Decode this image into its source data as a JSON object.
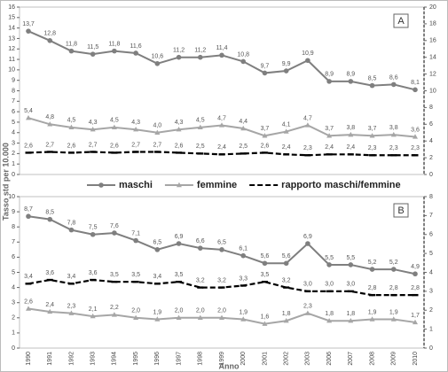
{
  "chart_data": [
    {
      "type": "line",
      "label": "A",
      "ylabel": "Tasso std per 10.000",
      "ylim": [
        0,
        16
      ],
      "yticks": [
        0,
        1,
        2,
        3,
        4,
        5,
        6,
        7,
        8,
        9,
        10,
        11,
        12,
        13,
        14,
        15,
        16
      ],
      "y2lim": [
        0,
        20
      ],
      "y2ticks": [
        0,
        2,
        4,
        6,
        8,
        10,
        12,
        14,
        16,
        18,
        20
      ],
      "series": [
        {
          "name": "maschi",
          "color": "#7f7f7f",
          "marker": "circle",
          "values": [
            13.7,
            12.8,
            11.8,
            11.5,
            11.8,
            11.6,
            10.6,
            11.2,
            11.2,
            11.4,
            10.8,
            9.7,
            9.9,
            10.9,
            8.9,
            8.9,
            8.5,
            8.6,
            8.1
          ],
          "value_labels": [
            "13,7",
            "12,8",
            "11,8",
            "11,5",
            "11,8",
            "11,6",
            "10,6",
            "11,2",
            "11,2",
            "11,4",
            "10,8",
            "9,7",
            "9,9",
            "10,9",
            "8,9",
            "8,9",
            "8,5",
            "8,6",
            "8,1"
          ]
        },
        {
          "name": "femmine",
          "color": "#a6a6a6",
          "marker": "triangle",
          "values": [
            5.4,
            4.8,
            4.5,
            4.3,
            4.5,
            4.3,
            4.0,
            4.3,
            4.5,
            4.7,
            4.4,
            3.7,
            4.1,
            4.7,
            3.7,
            3.8,
            3.7,
            3.8,
            3.6
          ],
          "value_labels": [
            "5,4",
            "4,8",
            "4,5",
            "4,3",
            "4,5",
            "4,3",
            "4,0",
            "4,3",
            "4,5",
            "4,7",
            "4,4",
            "3,7",
            "4,1",
            "4,7",
            "3,7",
            "3,8",
            "3,7",
            "3,8",
            "3,6"
          ]
        },
        {
          "name": "rapporto maschi/femmine",
          "color": "#000000",
          "marker": "dash",
          "dashed": true,
          "axis": "y2",
          "values": [
            2.6,
            2.7,
            2.6,
            2.7,
            2.6,
            2.7,
            2.7,
            2.6,
            2.5,
            2.4,
            2.5,
            2.6,
            2.4,
            2.3,
            2.4,
            2.4,
            2.3,
            2.3,
            2.3
          ],
          "value_labels": [
            "2,6",
            "2,7",
            "2,6",
            "2,7",
            "2,6",
            "2,7",
            "2,7",
            "2,6",
            "2,5",
            "2,4",
            "2,5",
            "2,6",
            "2,4",
            "2,3",
            "2,4",
            "2,4",
            "2,3",
            "2,3",
            "2,3"
          ]
        }
      ]
    },
    {
      "type": "line",
      "label": "B",
      "xlabel": "Anno",
      "categories": [
        "1990",
        "1991",
        "1992",
        "1993",
        "1994",
        "1995",
        "1996",
        "1997",
        "1998",
        "1999",
        "2000",
        "2001",
        "2002",
        "2003",
        "2006",
        "2007",
        "2008",
        "2009",
        "2010"
      ],
      "ylim": [
        0,
        10
      ],
      "yticks": [
        0,
        1,
        2,
        3,
        4,
        5,
        6,
        7,
        8,
        9,
        10
      ],
      "y2lim": [
        0,
        8
      ],
      "y2ticks": [
        0,
        1,
        2,
        3,
        4,
        5,
        6,
        7,
        8
      ],
      "series": [
        {
          "color": "#7f7f7f",
          "marker": "circle",
          "values": [
            8.7,
            8.5,
            7.8,
            7.5,
            7.6,
            7.1,
            6.5,
            6.9,
            6.6,
            6.5,
            6.1,
            5.6,
            5.6,
            6.9,
            5.5,
            5.5,
            5.2,
            5.2,
            4.9
          ],
          "value_labels": [
            "8,7",
            "8,5",
            "7,8",
            "7,5",
            "7,6",
            "7,1",
            "6,5",
            "6,9",
            "6,6",
            "6,5",
            "6,1",
            "5,6",
            "5,6",
            "6,9",
            "5,5",
            "5,5",
            "5,2",
            "5,2",
            "4,9"
          ]
        },
        {
          "color": "#a6a6a6",
          "marker": "triangle",
          "values": [
            2.6,
            2.4,
            2.3,
            2.1,
            2.2,
            2.0,
            1.9,
            2.0,
            2.0,
            2.0,
            1.9,
            1.6,
            1.8,
            2.3,
            1.8,
            1.8,
            1.9,
            1.9,
            1.7
          ],
          "value_labels": [
            "2,6",
            "2,4",
            "2,3",
            "2,1",
            "2,2",
            "2,0",
            "1,9",
            "2,0",
            "2,0",
            "2,0",
            "1,9",
            "1,6",
            "1,8",
            "2,3",
            "1,8",
            "1,8",
            "1,9",
            "1,9",
            "1,7"
          ]
        },
        {
          "color": "#000000",
          "marker": "dash",
          "dashed": true,
          "axis": "y2",
          "values": [
            3.4,
            3.6,
            3.4,
            3.6,
            3.5,
            3.5,
            3.4,
            3.5,
            3.2,
            3.2,
            3.3,
            3.5,
            3.2,
            3.0,
            3.0,
            3.0,
            2.8,
            2.8,
            2.8
          ],
          "value_labels": [
            "3,4",
            "3,6",
            "3,4",
            "3,6",
            "3,5",
            "3,5",
            "3,4",
            "3,5",
            "3,2",
            "3,2",
            "3,3",
            "3,5",
            "3,2",
            "3,0",
            "3,0",
            "3,0",
            "2,8",
            "2,8",
            "2,8"
          ]
        }
      ]
    }
  ]
}
